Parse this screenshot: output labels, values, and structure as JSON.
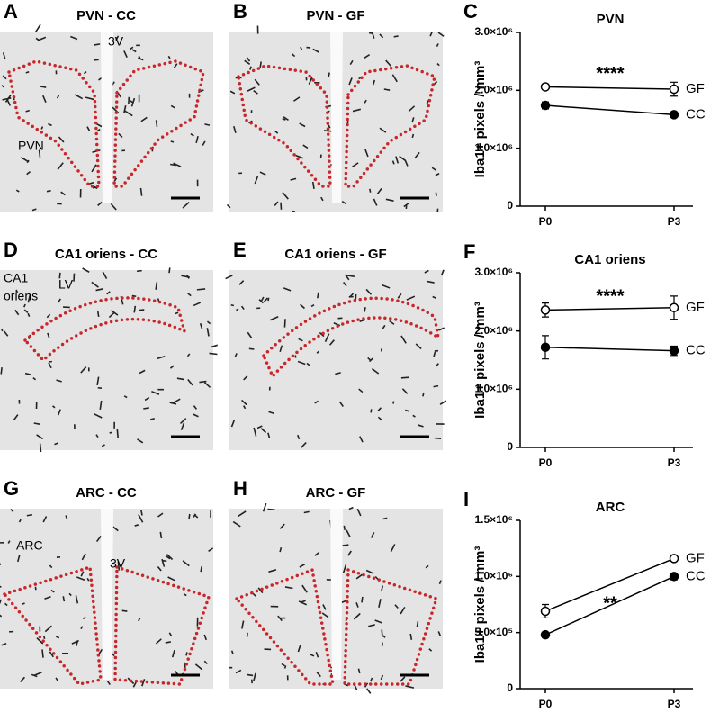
{
  "figure": {
    "panels": [
      {
        "letter": "A",
        "title": "PVN - CC",
        "labels": [
          "3V",
          "PVN"
        ]
      },
      {
        "letter": "B",
        "title": "PVN - GF",
        "labels": []
      },
      {
        "letter": "D",
        "title": "CA1 oriens - CC",
        "labels": [
          "CA1",
          "oriens",
          "LV"
        ]
      },
      {
        "letter": "E",
        "title": "CA1 oriens - GF",
        "labels": []
      },
      {
        "letter": "G",
        "title": "ARC - CC",
        "labels": [
          "ARC",
          "3V"
        ]
      },
      {
        "letter": "H",
        "title": "ARC - GF",
        "labels": []
      }
    ]
  },
  "chart_data": [
    {
      "type": "line",
      "panel_letter": "C",
      "title": "PVN",
      "y_label": "Iba1+ pixels / mm³",
      "annotation": "****",
      "categories": [
        "P0",
        "P3"
      ],
      "ylim": [
        0,
        3000000
      ],
      "yticks": [
        0,
        {
          "value": 1000000,
          "label": "1.0×10⁶"
        },
        {
          "value": 2000000,
          "label": "2.0×10⁶"
        },
        {
          "value": 3000000,
          "label": "3.0×10⁶"
        }
      ],
      "series": [
        {
          "name": "GF",
          "color": "#000000",
          "marker_fill": "#ffffff",
          "values": [
            2060000,
            2020000
          ],
          "errors": [
            30000,
            120000
          ]
        },
        {
          "name": "CC",
          "color": "#000000",
          "marker_fill": "#000000",
          "values": [
            1740000,
            1580000
          ],
          "errors": [
            60000,
            30000
          ]
        }
      ]
    },
    {
      "type": "line",
      "panel_letter": "F",
      "title": "CA1 oriens",
      "y_label": "Iba1+ pixels / mm³",
      "annotation": "****",
      "categories": [
        "P0",
        "P3"
      ],
      "ylim": [
        0,
        3000000
      ],
      "yticks": [
        0,
        {
          "value": 1000000,
          "label": "1.0×10⁶"
        },
        {
          "value": 2000000,
          "label": "2.0×10⁶"
        },
        {
          "value": 3000000,
          "label": "3.0×10⁶"
        }
      ],
      "series": [
        {
          "name": "GF",
          "color": "#000000",
          "marker_fill": "#ffffff",
          "values": [
            2360000,
            2400000
          ],
          "errors": [
            120000,
            200000
          ]
        },
        {
          "name": "CC",
          "color": "#000000",
          "marker_fill": "#000000",
          "values": [
            1720000,
            1660000
          ],
          "errors": [
            200000,
            80000
          ]
        }
      ]
    },
    {
      "type": "line",
      "panel_letter": "I",
      "title": "ARC",
      "y_label": "Iba1+ pixels / mm³",
      "annotation": "**",
      "categories": [
        "P0",
        "P3"
      ],
      "ylim": [
        0,
        1500000
      ],
      "yticks": [
        0,
        {
          "value": 500000,
          "label": "5.0×10⁵"
        },
        {
          "value": 1000000,
          "label": "1.0×10⁶"
        },
        {
          "value": 1500000,
          "label": "1.5×10⁶"
        }
      ],
      "series": [
        {
          "name": "GF",
          "color": "#000000",
          "marker_fill": "#ffffff",
          "values": [
            690000,
            1160000
          ],
          "errors": [
            60000,
            20000
          ]
        },
        {
          "name": "CC",
          "color": "#000000",
          "marker_fill": "#000000",
          "values": [
            480000,
            1000000
          ],
          "errors": [
            20000,
            30000
          ]
        }
      ]
    }
  ]
}
